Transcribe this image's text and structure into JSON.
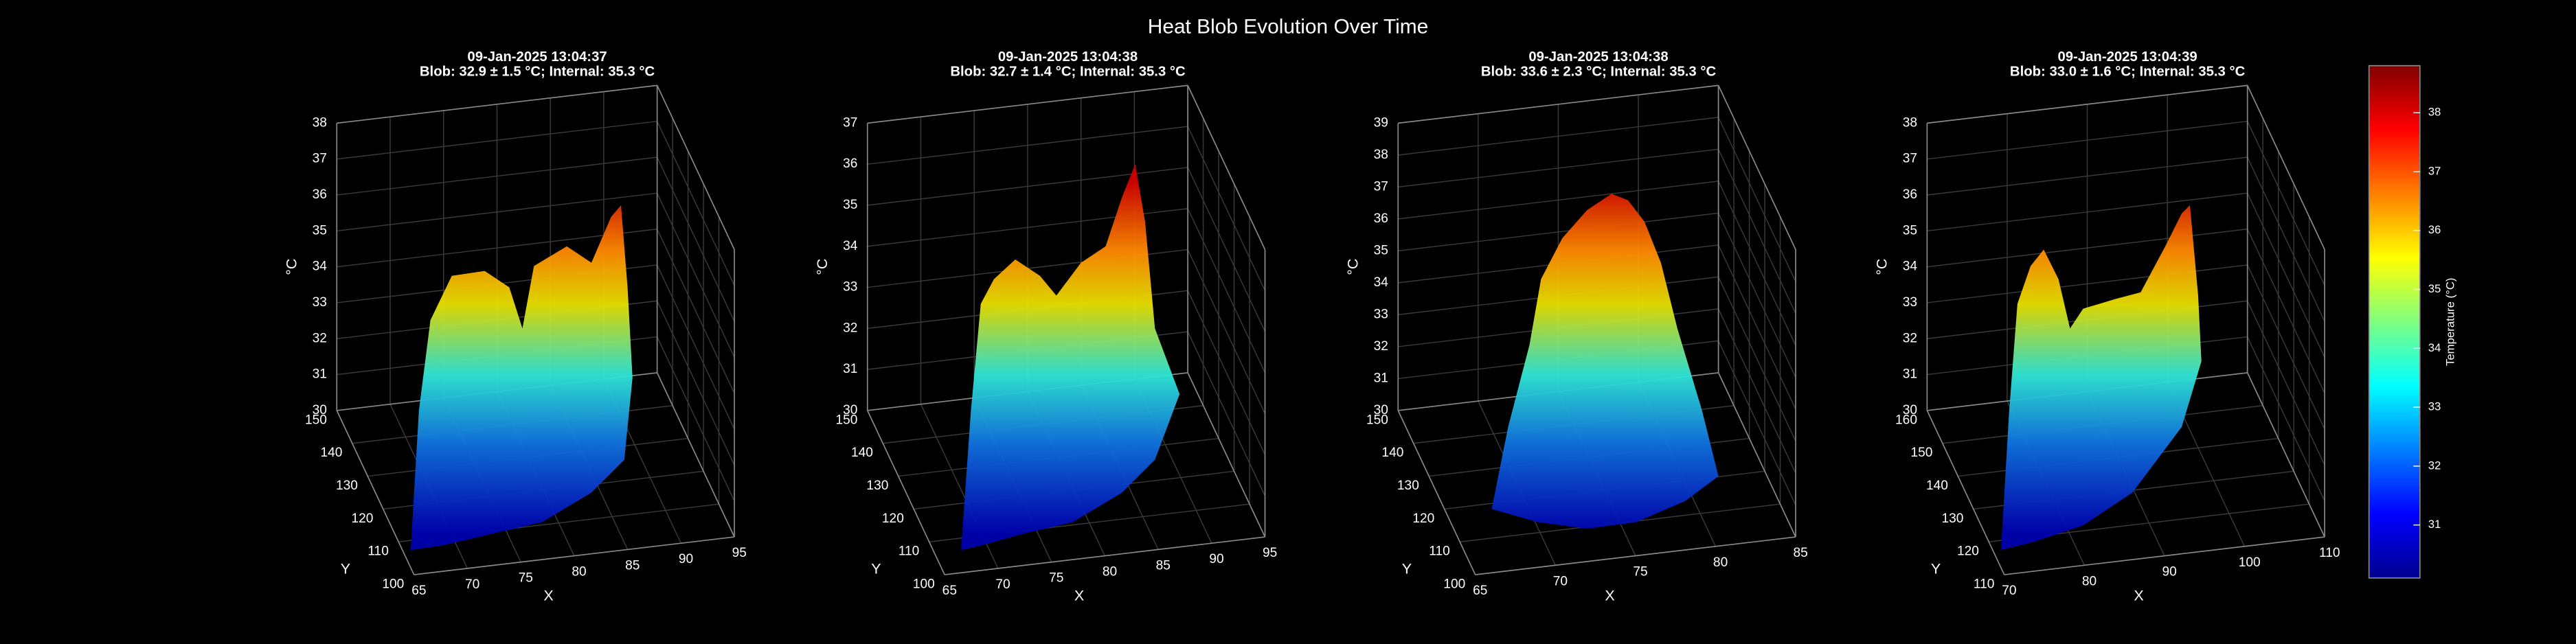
{
  "title": "Heat Blob Evolution Over Time",
  "chart_data": [
    {
      "type": "surface",
      "title": [
        "09-Jan-2025 13:04:37",
        "Blob: 32.9 ± 1.5 °C; Internal: 35.3 °C"
      ],
      "xlabel": "X",
      "ylabel": "Y",
      "zlabel": "°C",
      "xlim": [
        65,
        95
      ],
      "xticks": [
        65,
        70,
        75,
        80,
        85,
        90,
        95
      ],
      "ylim": [
        100,
        150
      ],
      "yticks": [
        100,
        110,
        120,
        130,
        140,
        150
      ],
      "zlim": [
        30,
        38
      ],
      "zticks": [
        30,
        31,
        32,
        33,
        34,
        35,
        36,
        37,
        38
      ],
      "grid": true
    },
    {
      "type": "surface",
      "title": [
        "09-Jan-2025 13:04:38",
        "Blob: 32.7 ± 1.4 °C; Internal: 35.3 °C"
      ],
      "xlabel": "X",
      "ylabel": "Y",
      "zlabel": "°C",
      "xlim": [
        65,
        95
      ],
      "xticks": [
        65,
        70,
        75,
        80,
        85,
        90,
        95
      ],
      "ylim": [
        100,
        150
      ],
      "yticks": [
        100,
        110,
        120,
        130,
        140,
        150
      ],
      "zlim": [
        30,
        37
      ],
      "zticks": [
        30,
        31,
        32,
        33,
        34,
        35,
        36,
        37
      ],
      "grid": true
    },
    {
      "type": "surface",
      "title": [
        "09-Jan-2025 13:04:38",
        "Blob: 33.6 ± 2.3 °C; Internal: 35.3 °C"
      ],
      "xlabel": "X",
      "ylabel": "Y",
      "zlabel": "°C",
      "xlim": [
        65,
        85
      ],
      "xticks": [
        65,
        70,
        75,
        80,
        85
      ],
      "ylim": [
        100,
        150
      ],
      "yticks": [
        100,
        110,
        120,
        130,
        140,
        150
      ],
      "zlim": [
        30,
        39
      ],
      "zticks": [
        30,
        31,
        32,
        33,
        34,
        35,
        36,
        37,
        38,
        39
      ],
      "grid": true
    },
    {
      "type": "surface",
      "title": [
        "09-Jan-2025 13:04:39",
        "Blob: 33.0 ± 1.6 °C; Internal: 35.3 °C"
      ],
      "xlabel": "X",
      "ylabel": "Y",
      "zlabel": "°C",
      "xlim": [
        70,
        110
      ],
      "xticks": [
        70,
        80,
        90,
        100,
        110
      ],
      "ylim": [
        110,
        160
      ],
      "yticks": [
        110,
        120,
        130,
        140,
        150,
        160
      ],
      "zlim": [
        30,
        38
      ],
      "zticks": [
        30,
        31,
        32,
        33,
        34,
        35,
        36,
        37,
        38
      ],
      "grid": true
    }
  ],
  "colorbar": {
    "label": "Temperature (°C)",
    "lim": [
      30.1,
      38.8
    ],
    "ticks": [
      31,
      32,
      33,
      34,
      35,
      36,
      37,
      38
    ]
  }
}
